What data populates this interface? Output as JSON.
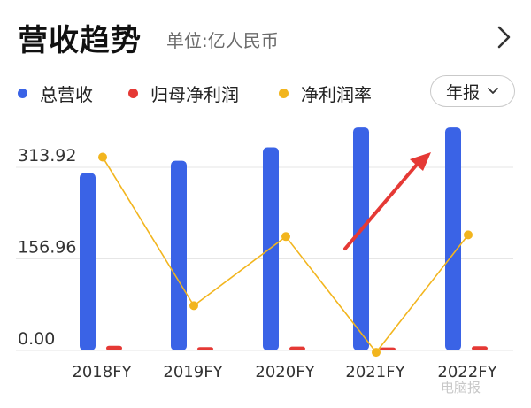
{
  "header": {
    "title": "营收趋势",
    "unit": "单位:亿人民币",
    "chevron_icon": "chevron-right-icon"
  },
  "legend": [
    {
      "label": "总营收",
      "color": "#3a63e6"
    },
    {
      "label": "归母净利润",
      "color": "#e53935"
    },
    {
      "label": "净利润率",
      "color": "#f2b51e"
    }
  ],
  "period_selector": {
    "label": "年报",
    "icon": "chevron-down-icon"
  },
  "watermark": "电脑报",
  "colors": {
    "revenue": "#3a63e6",
    "net_profit": "#e53935",
    "margin": "#f2b51e",
    "grid": "#e6e6e6",
    "arrow": "#e53935"
  },
  "chart_data": {
    "type": "bar",
    "categories": [
      "2018FY",
      "2019FY",
      "2020FY",
      "2021FY",
      "2022FY"
    ],
    "y_ticks": [
      "313.92",
      "156.96",
      "0.00"
    ],
    "ylim": [
      0,
      370
    ],
    "series": [
      {
        "name": "总营收",
        "type": "bar",
        "values": [
          304,
          325,
          348,
          382,
          382
        ]
      },
      {
        "name": "归母净利润",
        "type": "bar",
        "values": [
          3.5,
          1.2,
          2.0,
          0.6,
          2.6
        ]
      },
      {
        "name": "净利润率",
        "type": "line",
        "values": [
          1.15,
          0.29,
          0.69,
          0.02,
          0.7
        ]
      }
    ],
    "annotation": "red-arrow"
  }
}
